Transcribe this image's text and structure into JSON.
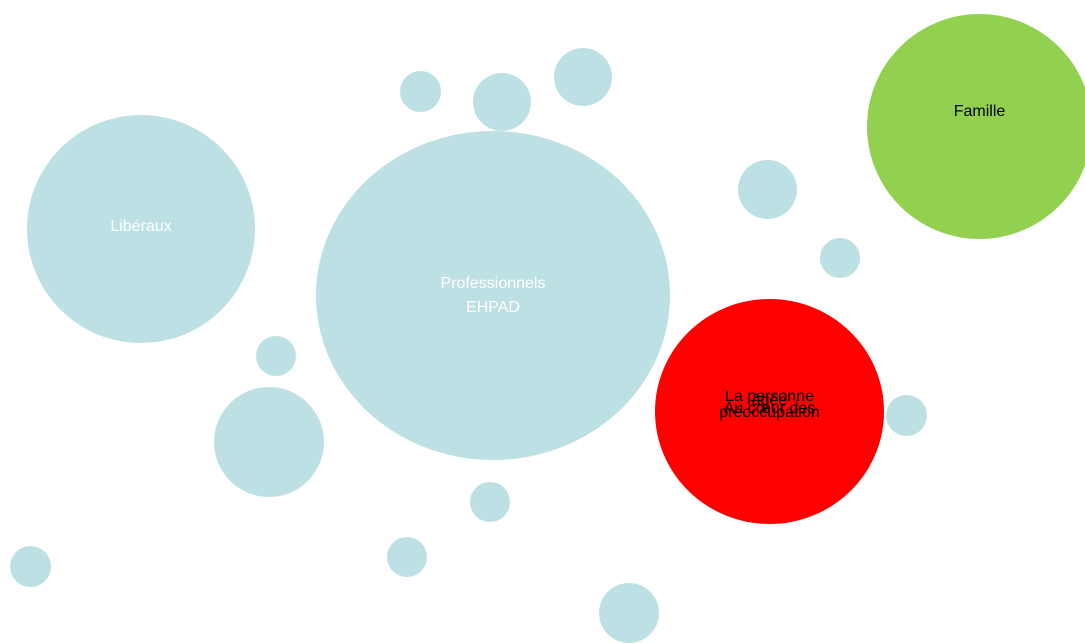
{
  "diagram": {
    "colors": {
      "bubble": "#bce0e3",
      "famille": "#92d050",
      "personne": "#ff0000"
    },
    "liberaux": {
      "label": "Libéraux"
    },
    "professionnels": {
      "line1": "Professionnels",
      "line2": "EHPAD"
    },
    "famille": {
      "label": "Famille"
    },
    "personne_agee": {
      "line1": "La personne",
      "line2": "âgée",
      "line3": "Au cœur des",
      "line4": "préoccupation"
    }
  }
}
